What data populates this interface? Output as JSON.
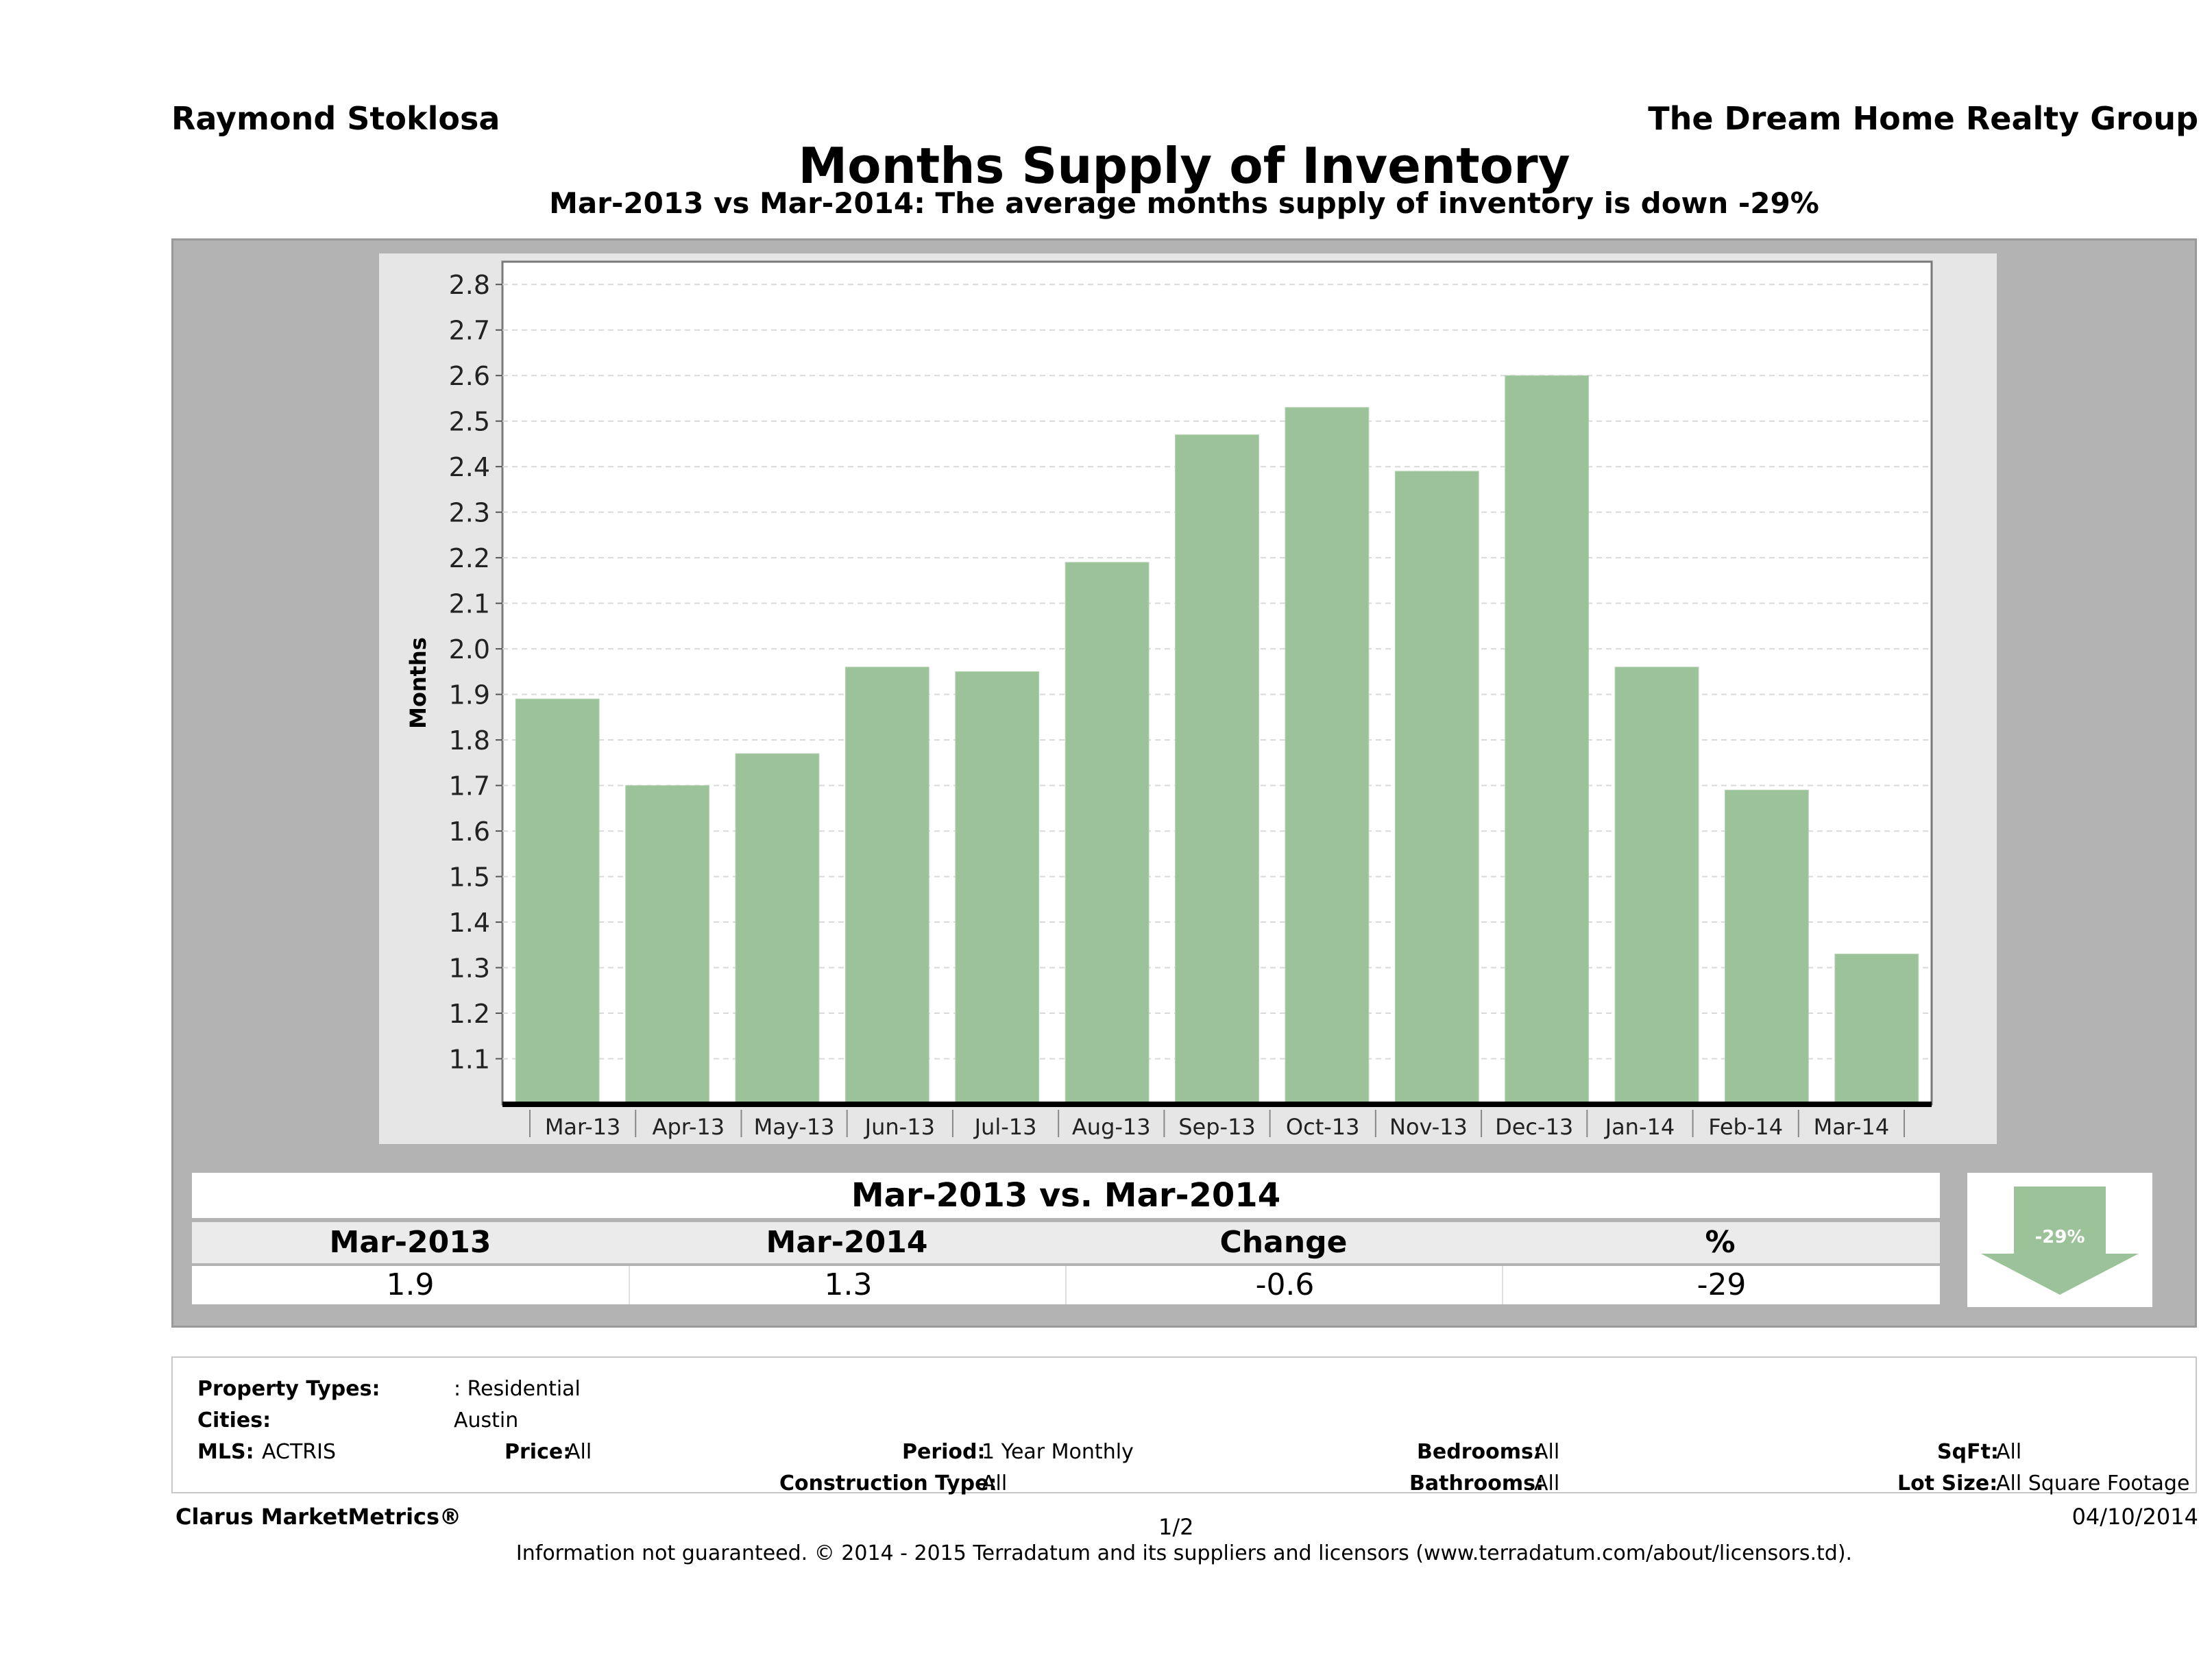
{
  "header": {
    "agent": "Raymond Stoklosa",
    "company": "The Dream Home Realty Group",
    "title": "Months Supply of Inventory",
    "subtitle": "Mar-2013 vs Mar-2014: The average months supply of inventory is down -29%"
  },
  "chart_data": {
    "type": "bar",
    "ylabel": "Months",
    "xlabel": "",
    "ylim": [
      1.0,
      2.85
    ],
    "yticks": [
      "1.1",
      "1.2",
      "1.3",
      "1.4",
      "1.5",
      "1.6",
      "1.7",
      "1.8",
      "1.9",
      "2.0",
      "2.1",
      "2.2",
      "2.3",
      "2.4",
      "2.5",
      "2.6",
      "2.7",
      "2.8"
    ],
    "grid": true,
    "bar_color": "#9cc29a",
    "categories": [
      "Mar-13",
      "Apr-13",
      "May-13",
      "Jun-13",
      "Jul-13",
      "Aug-13",
      "Sep-13",
      "Oct-13",
      "Nov-13",
      "Dec-13",
      "Jan-14",
      "Feb-14",
      "Mar-14"
    ],
    "values": [
      1.89,
      1.7,
      1.77,
      1.96,
      1.95,
      2.19,
      2.47,
      2.53,
      2.39,
      2.6,
      1.96,
      1.69,
      1.33
    ]
  },
  "comparison": {
    "title": "Mar-2013 vs. Mar-2014",
    "headers": [
      "Mar-2013",
      "Mar-2014",
      "Change",
      "%"
    ],
    "values": [
      "1.9",
      "1.3",
      "-0.6",
      "-29"
    ],
    "badge": "-29%",
    "badge_color": "#9cc29a"
  },
  "filters": {
    "property_types_label": "Property Types:",
    "property_types_value": ": Residential",
    "cities_label": "Cities:",
    "cities_value": "Austin",
    "mls_label": "MLS:",
    "mls_value": "ACTRIS",
    "price_label": "Price:",
    "price_value": "All",
    "period_label": "Period:",
    "period_value": "1 Year Monthly",
    "construction_label": "Construction Type:",
    "construction_value": "All",
    "bedrooms_label": "Bedrooms:",
    "bedrooms_value": "All",
    "bathrooms_label": "Bathrooms:",
    "bathrooms_value": "All",
    "sqft_label": "SqFt:",
    "sqft_value": "All",
    "lotsize_label": "Lot Size:",
    "lotsize_value": "All Square Footage"
  },
  "footer": {
    "brand": "Clarus MarketMetrics®",
    "page": "1/2",
    "date": "04/10/2014",
    "disclaimer": "Information not guaranteed. © 2014 - 2015 Terradatum and its suppliers and licensors (www.terradatum.com/about/licensors.td)."
  }
}
